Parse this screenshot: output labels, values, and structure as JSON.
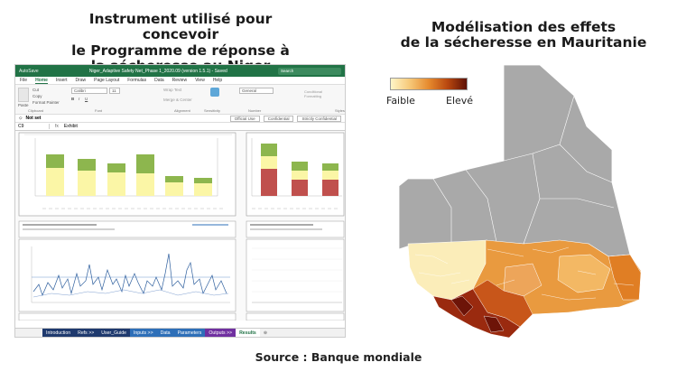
{
  "left_title": [
    "Instrument utilisé pour concevoir",
    "le Programme de réponse à",
    "la sécheresse au Niger"
  ],
  "right_title": [
    "Modélisation des effets",
    "de la sécheresse en Mauritanie"
  ],
  "source": "Source : Banque mondiale",
  "legend": {
    "low": "Faible",
    "high": "Elevé"
  },
  "excel": {
    "autosave": "AutoSave",
    "filename": "Niger_Adaptive Safety Net_Phase 1_2020.09 (version 1.5.1) - Saved",
    "search": "Search",
    "menu": [
      "File",
      "Home",
      "Insert",
      "Draw",
      "Page Layout",
      "Formulas",
      "Data",
      "Review",
      "View",
      "Help"
    ],
    "active_menu": "Home",
    "ribbon": {
      "paste": "Paste",
      "cut": "Cut",
      "copy": "Copy",
      "format_painter": "Format Painter",
      "clipboard": "Clipboard",
      "font_name": "Calibri",
      "font_size": "11",
      "font": "Font",
      "wrap_text": "Wrap Text",
      "merge": "Merge & Center",
      "alignment": "Alignment",
      "sensitivity": "Sensitivity",
      "general": "General",
      "number": "Number",
      "conditional": "Conditional Formatting",
      "styles": "Styles"
    },
    "infobar": {
      "label": "Not set",
      "o1": "Official Use",
      "o2": "Confidential",
      "o3": "Strictly Confidential"
    },
    "formula": {
      "cell": "C9",
      "content": "Exhibit"
    },
    "tabs": [
      {
        "label": "Introduction",
        "color": "#1f3a6e"
      },
      {
        "label": "Refs >>",
        "color": "#1f3a6e"
      },
      {
        "label": "User_Guide",
        "color": "#1f3a6e"
      },
      {
        "label": "Inputs >>",
        "color": "#2e6fb8"
      },
      {
        "label": "Data",
        "color": "#2e6fb8"
      },
      {
        "label": "Parameters",
        "color": "#2e6fb8"
      },
      {
        "label": "Outputs >>",
        "color": "#7030a0"
      },
      {
        "label": "Results",
        "color": "#ffffff"
      }
    ]
  }
}
